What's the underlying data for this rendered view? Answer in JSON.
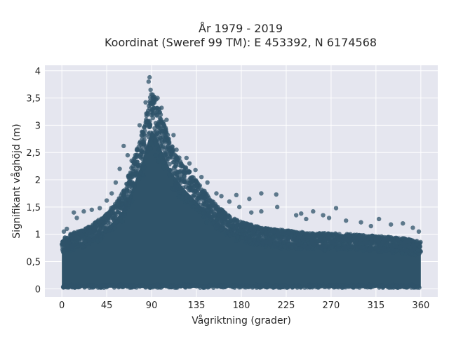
{
  "chart_data": {
    "type": "scatter",
    "title_line1": "År 1979 - 2019",
    "title_line2": "Koordinat (Sweref 99 TM): E 453392, N 6174568",
    "xlabel": "Vågriktning (grader)",
    "ylabel": "Signifikant våghöjd (m)",
    "xlim": [
      -17,
      377
    ],
    "ylim": [
      -0.15,
      4.1
    ],
    "xticks": [
      0,
      45,
      90,
      135,
      180,
      225,
      270,
      315,
      360
    ],
    "xtick_labels": [
      "0",
      "45",
      "90",
      "135",
      "180",
      "225",
      "270",
      "315",
      "360"
    ],
    "yticks": [
      0,
      0.5,
      1,
      1.5,
      2,
      2.5,
      3,
      3.5,
      4
    ],
    "ytick_labels": [
      "0",
      "0,5",
      "1",
      "1,5",
      "2",
      "2,5",
      "3",
      "3,5",
      "4"
    ],
    "grid": true,
    "marker_color": "#2f5369",
    "plot_background": "#e5e6ef",
    "envelope": {
      "x": [
        0,
        10,
        20,
        30,
        45,
        60,
        70,
        80,
        85,
        90,
        95,
        100,
        110,
        120,
        135,
        150,
        165,
        180,
        200,
        225,
        250,
        270,
        290,
        315,
        340,
        360
      ],
      "y": [
        0.9,
        1.0,
        1.05,
        1.15,
        1.35,
        1.7,
        2.2,
        2.8,
        3.2,
        3.55,
        3.4,
        3.1,
        2.6,
        2.3,
        1.95,
        1.6,
        1.35,
        1.2,
        1.1,
        1.05,
        1.0,
        1.0,
        0.98,
        0.95,
        0.92,
        0.85
      ]
    },
    "outliers": [
      {
        "x": 88,
        "y": 3.88
      },
      {
        "x": 87,
        "y": 3.8
      },
      {
        "x": 89,
        "y": 3.65
      },
      {
        "x": 96,
        "y": 3.5
      },
      {
        "x": 84,
        "y": 3.42
      },
      {
        "x": 100,
        "y": 3.32
      },
      {
        "x": 92,
        "y": 3.45
      },
      {
        "x": 78,
        "y": 3.0
      },
      {
        "x": 105,
        "y": 3.1
      },
      {
        "x": 112,
        "y": 2.82
      },
      {
        "x": 115,
        "y": 2.55
      },
      {
        "x": 125,
        "y": 2.4
      },
      {
        "x": 128,
        "y": 2.3
      },
      {
        "x": 134,
        "y": 2.18
      },
      {
        "x": 140,
        "y": 2.05
      },
      {
        "x": 146,
        "y": 1.95
      },
      {
        "x": 155,
        "y": 1.75
      },
      {
        "x": 160,
        "y": 1.7
      },
      {
        "x": 168,
        "y": 1.6
      },
      {
        "x": 175,
        "y": 1.72
      },
      {
        "x": 188,
        "y": 1.65
      },
      {
        "x": 200,
        "y": 1.75
      },
      {
        "x": 215,
        "y": 1.73
      },
      {
        "x": 216,
        "y": 1.5
      },
      {
        "x": 200,
        "y": 1.42
      },
      {
        "x": 190,
        "y": 1.4
      },
      {
        "x": 178,
        "y": 1.5
      },
      {
        "x": 62,
        "y": 2.62
      },
      {
        "x": 66,
        "y": 2.45
      },
      {
        "x": 70,
        "y": 2.35
      },
      {
        "x": 58,
        "y": 2.2
      },
      {
        "x": 54,
        "y": 1.95
      },
      {
        "x": 50,
        "y": 1.75
      },
      {
        "x": 45,
        "y": 1.62
      },
      {
        "x": 38,
        "y": 1.48
      },
      {
        "x": 30,
        "y": 1.45
      },
      {
        "x": 22,
        "y": 1.42
      },
      {
        "x": 12,
        "y": 1.4
      },
      {
        "x": 15,
        "y": 1.3
      },
      {
        "x": 5,
        "y": 1.1
      },
      {
        "x": 2,
        "y": 1.05
      },
      {
        "x": 235,
        "y": 1.35
      },
      {
        "x": 240,
        "y": 1.38
      },
      {
        "x": 252,
        "y": 1.42
      },
      {
        "x": 262,
        "y": 1.35
      },
      {
        "x": 268,
        "y": 1.3
      },
      {
        "x": 275,
        "y": 1.48
      },
      {
        "x": 285,
        "y": 1.25
      },
      {
        "x": 300,
        "y": 1.22
      },
      {
        "x": 318,
        "y": 1.28
      },
      {
        "x": 330,
        "y": 1.18
      },
      {
        "x": 342,
        "y": 1.2
      },
      {
        "x": 352,
        "y": 1.12
      },
      {
        "x": 358,
        "y": 1.05
      },
      {
        "x": 245,
        "y": 1.28
      },
      {
        "x": 310,
        "y": 1.15
      }
    ]
  }
}
